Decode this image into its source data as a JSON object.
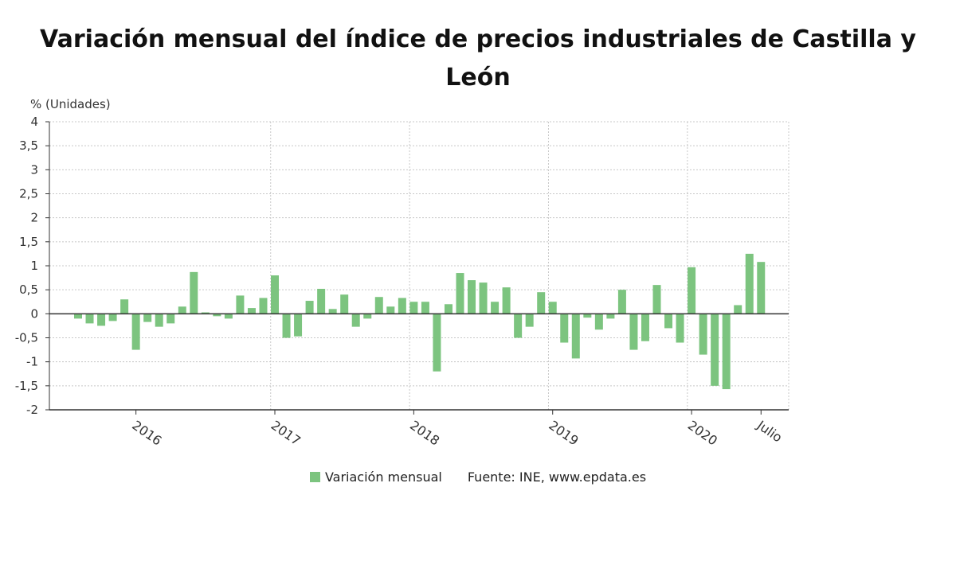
{
  "chart_data": {
    "type": "bar",
    "title": "Variación mensual del índice de precios industriales de Castilla y León",
    "ylabel": "% (Unidades)",
    "xlabel": "",
    "ylim": [
      -2,
      4
    ],
    "yticks": [
      "-2",
      "-1,5",
      "-1",
      "-0,5",
      "0",
      "0,5",
      "1",
      "1,5",
      "2",
      "2,5",
      "3",
      "3,5",
      "4"
    ],
    "grid": true,
    "x_tick_labels": [
      {
        "label": "2016",
        "index": 5
      },
      {
        "label": "2017",
        "index": 17
      },
      {
        "label": "2018",
        "index": 29
      },
      {
        "label": "2019",
        "index": 41
      },
      {
        "label": "2020",
        "index": 53
      },
      {
        "label": "Julio",
        "index": 59
      }
    ],
    "series": [
      {
        "name": "Variación mensual",
        "color": "#7cc47f",
        "values": [
          -0.1,
          -0.2,
          -0.25,
          -0.15,
          0.3,
          -0.75,
          -0.17,
          -0.27,
          -0.2,
          0.15,
          0.87,
          0.03,
          -0.05,
          -0.1,
          0.38,
          0.12,
          0.33,
          0.8,
          -0.5,
          -0.47,
          0.27,
          0.52,
          0.1,
          0.4,
          -0.27,
          -0.1,
          0.35,
          0.15,
          0.33,
          0.25,
          0.25,
          -1.2,
          0.2,
          0.85,
          0.7,
          0.65,
          0.25,
          0.55,
          -0.5,
          -0.27,
          0.45,
          0.25,
          -0.6,
          -0.93,
          -0.08,
          -0.33,
          -0.1,
          0.5,
          -0.75,
          -0.57,
          0.6,
          -0.3,
          -0.6,
          0.97,
          -0.85,
          -1.5,
          -1.57,
          0.18,
          1.25,
          1.08
        ]
      }
    ],
    "legend": {
      "placement": "bottom",
      "label": "Variación mensual"
    },
    "source": "Fuente: INE, www.epdata.es"
  }
}
